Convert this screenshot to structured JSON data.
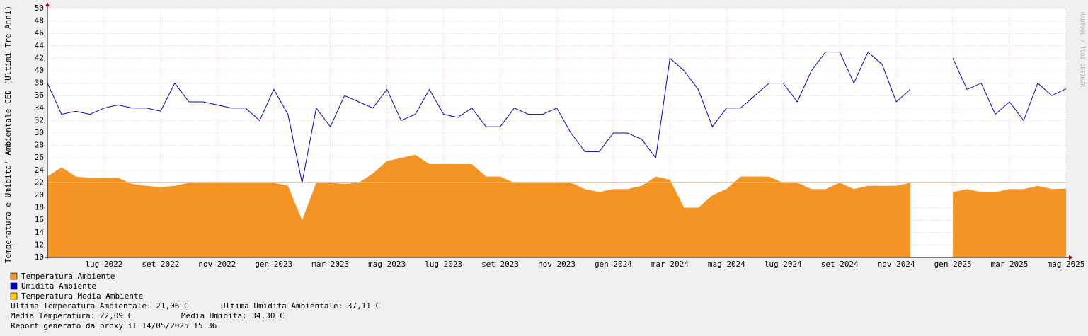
{
  "chart_data": {
    "type": "area-line",
    "y_label": "Temperatura e Umidita' Ambientale CED (Ultimi Tre Anni)",
    "watermark": "RRDTOOL / TOBI OETIKER",
    "xlim": [
      -2,
      34
    ],
    "ylim": [
      10,
      50
    ],
    "xticks": [
      {
        "value": 0,
        "label": "lug 2022"
      },
      {
        "value": 2,
        "label": "set 2022"
      },
      {
        "value": 4,
        "label": "nov 2022"
      },
      {
        "value": 6,
        "label": "gen 2023"
      },
      {
        "value": 8,
        "label": "mar 2023"
      },
      {
        "value": 10,
        "label": "mag 2023"
      },
      {
        "value": 12,
        "label": "lug 2023"
      },
      {
        "value": 14,
        "label": "set 2023"
      },
      {
        "value": 16,
        "label": "nov 2023"
      },
      {
        "value": 18,
        "label": "gen 2024"
      },
      {
        "value": 20,
        "label": "mar 2024"
      },
      {
        "value": 22,
        "label": "mag 2024"
      },
      {
        "value": 24,
        "label": "lug 2024"
      },
      {
        "value": 26,
        "label": "set 2024"
      },
      {
        "value": 28,
        "label": "nov 2024"
      },
      {
        "value": 30,
        "label": "gen 2025"
      },
      {
        "value": 32,
        "label": "mar 2025"
      },
      {
        "value": 34,
        "label": "mag 2025"
      }
    ],
    "yticks": [
      10,
      12,
      14,
      16,
      18,
      20,
      22,
      24,
      26,
      28,
      30,
      32,
      34,
      36,
      38,
      40,
      42,
      44,
      46,
      48,
      50
    ],
    "grid": true,
    "x": [
      -2,
      -1.5,
      -1,
      -0.5,
      0,
      0.5,
      1,
      1.5,
      2,
      2.5,
      3,
      3.5,
      4,
      4.5,
      5,
      5.5,
      6,
      6.5,
      7,
      7.5,
      8,
      8.5,
      9,
      9.5,
      10,
      10.5,
      11,
      11.5,
      12,
      12.5,
      13,
      13.5,
      14,
      14.5,
      15,
      15.5,
      16,
      16.5,
      17,
      17.5,
      18,
      18.5,
      19,
      19.5,
      20,
      20.5,
      21,
      21.5,
      22,
      22.5,
      23,
      23.5,
      24,
      24.5,
      25,
      25.5,
      26,
      26.5,
      27,
      27.5,
      28,
      28.5,
      29,
      29.5,
      30,
      30.5,
      31,
      31.5,
      32,
      32.5,
      33,
      33.5,
      34
    ],
    "series": [
      {
        "name": "Temperatura Ambiente",
        "color": "#f39425",
        "kind": "area",
        "values": [
          23,
          24.5,
          23,
          22.8,
          22.8,
          22.8,
          21.8,
          21.5,
          21.3,
          21.5,
          22,
          22,
          22,
          22,
          22,
          22,
          22,
          21.5,
          16,
          22,
          22,
          21.8,
          22,
          23.5,
          25.5,
          26,
          26.5,
          25,
          25,
          25,
          25,
          23,
          23,
          22,
          22,
          22,
          22,
          22,
          21,
          20.5,
          21,
          21,
          21.5,
          23,
          22.5,
          18,
          18,
          20,
          21,
          23,
          23,
          23,
          22,
          22,
          21,
          21,
          22,
          21,
          21.5,
          21.5,
          21.5,
          22,
          null,
          null,
          20.5,
          21,
          20.5,
          20.5,
          21,
          21,
          21.5,
          21,
          21.06
        ]
      },
      {
        "name": "Umidita Ambiente",
        "color": "#0000cc",
        "kind": "line",
        "values": [
          38,
          33,
          33.5,
          33,
          34,
          34.5,
          34,
          34,
          33.5,
          38,
          35,
          35,
          34.5,
          34,
          34,
          32,
          37,
          33,
          22,
          34,
          31,
          36,
          35,
          34,
          37,
          32,
          33,
          37,
          33,
          32.5,
          34,
          31,
          31,
          34,
          33,
          33,
          34,
          30,
          27,
          27,
          30,
          30,
          29,
          26,
          42,
          40,
          37,
          31,
          34,
          34,
          36,
          38,
          38,
          35,
          40,
          43,
          43,
          38,
          43,
          41,
          35,
          37,
          null,
          null,
          42,
          37,
          38,
          33,
          35,
          32,
          38,
          36,
          37.11
        ]
      }
    ],
    "hline": {
      "name": "Temperatura Media Ambiente",
      "color": "#ffcc00",
      "value": 22.09
    },
    "stats": [
      "Ultima Temperatura Ambientale: 21,06 C",
      "Ultima Umidita Ambientale: 37,11 C",
      "Media Temperatura: 22,09 C",
      "Media Umidita: 34,30 C"
    ],
    "footer": "Report generato da proxy il 14/05/2025 15.36"
  }
}
